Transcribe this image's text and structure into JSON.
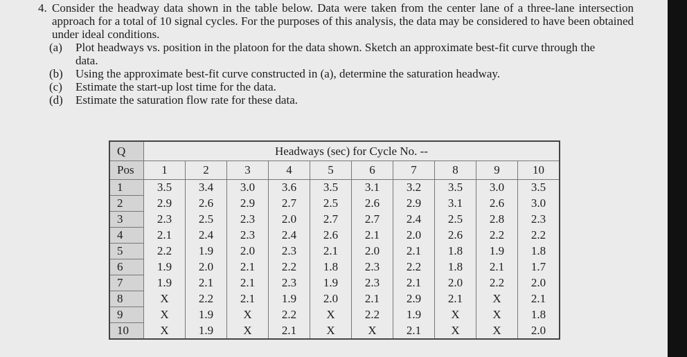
{
  "question": {
    "number": "4.",
    "text": "Consider the headway data shown in the table below. Data were taken from the center lane of a three-lane intersection approach for a total of 10 signal cycles. For the purposes of this analysis, the data may be considered to have been obtained under ideal conditions.",
    "parts": [
      {
        "label": "(a)",
        "text": "Plot headways vs. position in the platoon for the data shown. Sketch an approximate best-fit curve through the data."
      },
      {
        "label": "(b)",
        "text": "Using the approximate best-fit curve constructed in (a), determine the saturation headway."
      },
      {
        "label": "(c)",
        "text": "Estimate the start-up lost time for the data."
      },
      {
        "label": "(d)",
        "text": "Estimate the saturation flow rate for these data."
      }
    ]
  },
  "table": {
    "header": {
      "q": "Q",
      "pos": "Pos",
      "caption": "Headways (sec) for Cycle No. --",
      "columns": [
        "1",
        "2",
        "3",
        "4",
        "5",
        "6",
        "7",
        "8",
        "9",
        "10"
      ]
    },
    "rows": [
      {
        "pos": "1",
        "values": [
          "3.5",
          "3.4",
          "3.0",
          "3.6",
          "3.5",
          "3.1",
          "3.2",
          "3.5",
          "3.0",
          "3.5"
        ]
      },
      {
        "pos": "2",
        "values": [
          "2.9",
          "2.6",
          "2.9",
          "2.7",
          "2.5",
          "2.6",
          "2.9",
          "3.1",
          "2.6",
          "3.0"
        ]
      },
      {
        "pos": "3",
        "values": [
          "2.3",
          "2.5",
          "2.3",
          "2.0",
          "2.7",
          "2.7",
          "2.4",
          "2.5",
          "2.8",
          "2.3"
        ]
      },
      {
        "pos": "4",
        "values": [
          "2.1",
          "2.4",
          "2.3",
          "2.4",
          "2.6",
          "2.1",
          "2.0",
          "2.6",
          "2.2",
          "2.2"
        ]
      },
      {
        "pos": "5",
        "values": [
          "2.2",
          "1.9",
          "2.0",
          "2.3",
          "2.1",
          "2.0",
          "2.1",
          "1.8",
          "1.9",
          "1.8"
        ]
      },
      {
        "pos": "6",
        "values": [
          "1.9",
          "2.0",
          "2.1",
          "2.2",
          "1.8",
          "2.3",
          "2.2",
          "1.8",
          "2.1",
          "1.7"
        ]
      },
      {
        "pos": "7",
        "values": [
          "1.9",
          "2.1",
          "2.1",
          "2.3",
          "1.9",
          "2.3",
          "2.1",
          "2.0",
          "2.2",
          "2.0"
        ]
      },
      {
        "pos": "8",
        "values": [
          "X",
          "2.2",
          "2.1",
          "1.9",
          "2.0",
          "2.1",
          "2.9",
          "2.1",
          "X",
          "2.1"
        ]
      },
      {
        "pos": "9",
        "values": [
          "X",
          "1.9",
          "X",
          "2.2",
          "X",
          "2.2",
          "1.9",
          "X",
          "X",
          "1.8"
        ]
      },
      {
        "pos": "10",
        "values": [
          "X",
          "1.9",
          "X",
          "2.1",
          "X",
          "X",
          "2.1",
          "X",
          "X",
          "2.0"
        ]
      }
    ]
  }
}
